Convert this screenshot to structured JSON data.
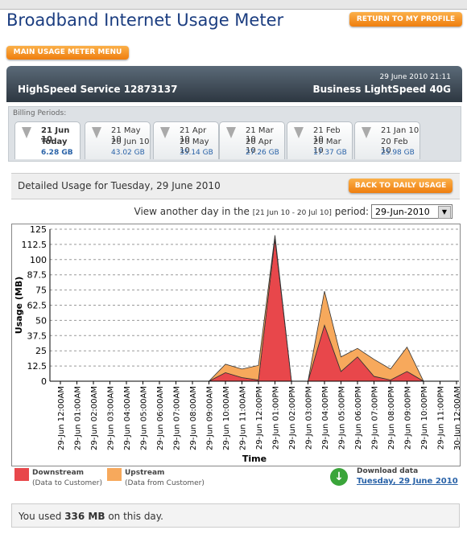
{
  "header": {
    "title": "Broadband Internet Usage Meter",
    "profile_button": "RETURN TO MY PROFILE",
    "menu_button": "MAIN USAGE METER MENU"
  },
  "account": {
    "datetime": "29 June 2010 21:11",
    "service": "HighSpeed Service 12873137",
    "plan": "Business LightSpeed 40G"
  },
  "billing": {
    "label": "Billing Periods:",
    "periods": [
      {
        "start": "21 Jun 10",
        "end": "Today",
        "usage": "6.28 GB"
      },
      {
        "start": "21 May 10",
        "end": "20 Jun 10",
        "usage": "43.02 GB"
      },
      {
        "start": "21 Apr 10",
        "end": "20 May 10",
        "usage": "35.14 GB"
      },
      {
        "start": "21 Mar 10",
        "end": "20 Apr 10",
        "usage": "27.26 GB"
      },
      {
        "start": "21 Feb 10",
        "end": "20 Mar 10",
        "usage": "17.37 GB"
      },
      {
        "start": "21 Jan 10",
        "end": "20 Feb 10",
        "usage": "25.98 GB"
      }
    ]
  },
  "detail": {
    "title": "Detailed Usage for Tuesday, 29 June 2010",
    "back_button": "BACK TO DAILY USAGE",
    "view_prefix": "View another day in the",
    "view_range": "[21 Jun 10 - 20 Jul 10]",
    "view_suffix": "period:",
    "selected_day": "29-Jun-2010"
  },
  "chart_data": {
    "type": "area",
    "stacked": true,
    "x_label": "Time",
    "y_label": "Usage (MB)",
    "categories": [
      "29-Jun 12:00AM",
      "29-Jun 01:00AM",
      "29-Jun 02:00AM",
      "29-Jun 03:00AM",
      "29-Jun 04:00AM",
      "29-Jun 05:00AM",
      "29-Jun 06:00AM",
      "29-Jun 07:00AM",
      "29-Jun 08:00AM",
      "29-Jun 09:00AM",
      "29-Jun 10:00AM",
      "29-Jun 11:00AM",
      "29-Jun 12:00PM",
      "29-Jun 01:00PM",
      "29-Jun 02:00PM",
      "29-Jun 03:00PM",
      "29-Jun 04:00PM",
      "29-Jun 05:00PM",
      "29-Jun 06:00PM",
      "29-Jun 07:00PM",
      "29-Jun 08:00PM",
      "29-Jun 09:00PM",
      "29-Jun 10:00PM",
      "29-Jun 11:00PM",
      "30-Jun 12:00AM"
    ],
    "series": [
      {
        "name": "Downstream",
        "note": "(Data to Customer)",
        "color": "#e8474b",
        "values": [
          0,
          0,
          0,
          0,
          0,
          0,
          0,
          0,
          0,
          0,
          7,
          3,
          1,
          117,
          0,
          0,
          46,
          8,
          20,
          4,
          1,
          8,
          0,
          0,
          0
        ]
      },
      {
        "name": "Upstream",
        "note": "(Data from Customer)",
        "color": "#f7a95c",
        "values": [
          0,
          0,
          0,
          0,
          0,
          0,
          0,
          0,
          0,
          0,
          7,
          7,
          12,
          3,
          0,
          0,
          28,
          12,
          7,
          14,
          9,
          20,
          0,
          0,
          0
        ]
      }
    ],
    "ylim": [
      0,
      125
    ],
    "yticks": [
      0,
      12.5,
      25,
      37.5,
      50,
      62.5,
      75,
      87.5,
      100,
      112.5,
      125
    ],
    "grid": true
  },
  "download": {
    "label": "Download data",
    "link": "Tuesday, 29 June 2010"
  },
  "summary": {
    "prefix": "You used",
    "amount": "336 MB",
    "suffix": "on this day."
  }
}
